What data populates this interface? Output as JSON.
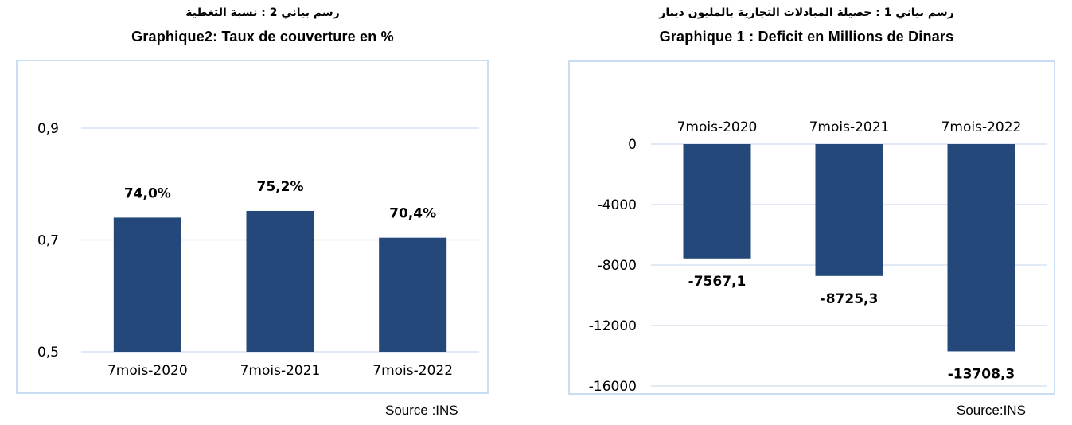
{
  "charts": {
    "coverage": {
      "title_ar": "رسم بياني 2 : نسبة التغطية",
      "title_fr": "Graphique2: Taux de couverture en %",
      "source": "Source :INS"
    },
    "deficit": {
      "title_ar": "رسم بياني 1 : حصيلة المبادلات التجارية بالمليون دينار",
      "title_fr": "Graphique 1 : Deficit en Millions de Dinars",
      "source": "Source:INS"
    }
  },
  "colors": {
    "bar": "#234879",
    "grid": "#d5e2f1",
    "frame": "#c9def2"
  },
  "chart_data": [
    {
      "type": "bar",
      "title": "Graphique2: Taux de couverture en %",
      "categories": [
        "7mois-2020",
        "7mois-2021",
        "7mois-2022"
      ],
      "values": [
        0.74,
        0.752,
        0.704
      ],
      "data_labels": [
        "74,0%",
        "75,2%",
        "70,4%"
      ],
      "ylim": [
        0.5,
        0.9
      ],
      "yticks": [
        0.5,
        0.7,
        0.9
      ],
      "ytick_labels": [
        "0,5",
        "0,7",
        "0,9"
      ],
      "grid": true
    },
    {
      "type": "bar",
      "title": "Graphique 1 : Deficit en Millions de Dinars",
      "categories": [
        "7mois-2020",
        "7mois-2021",
        "7mois-2022"
      ],
      "values": [
        -7567.1,
        -8725.3,
        -13708.3
      ],
      "data_labels": [
        "-7567,1",
        "-8725,3",
        "-13708,3"
      ],
      "ylim": [
        -16000,
        0
      ],
      "yticks": [
        0,
        -4000,
        -8000,
        -12000,
        -16000
      ],
      "ytick_labels": [
        "0",
        "-4000",
        "-8000",
        "-12000",
        "-16000"
      ],
      "category_axis_position": "top",
      "grid": true
    }
  ]
}
